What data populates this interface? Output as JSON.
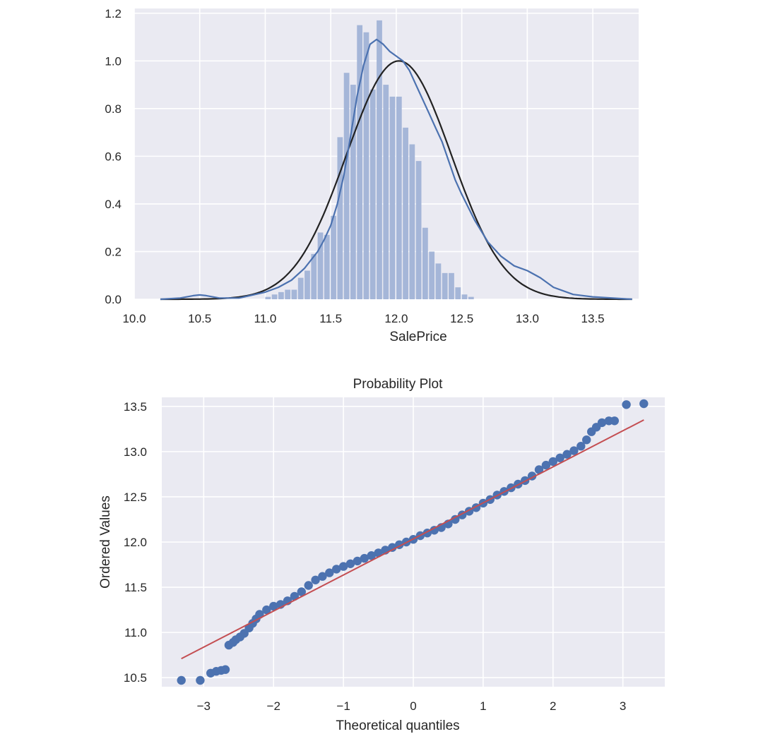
{
  "colors": {
    "axes_bg": "#eaeaf2",
    "grid": "#ffffff",
    "hist_bar": "#a5b6d8",
    "kde_line": "#4c72b0",
    "normal_fit_line": "#222222",
    "points": "#4c72b0",
    "fit_line": "#c44e52",
    "text": "#262626"
  },
  "chart_data": [
    {
      "type": "bar",
      "subtype": "histogram-with-density",
      "title": "",
      "xlabel": "SalePrice",
      "ylabel": "",
      "xlim": [
        10.0,
        13.85
      ],
      "ylim": [
        0.0,
        1.22
      ],
      "xticks": [
        10.0,
        10.5,
        11.0,
        11.5,
        12.0,
        12.5,
        13.0,
        13.5
      ],
      "xtick_labels": [
        "10.0",
        "10.5",
        "11.0",
        "11.5",
        "12.0",
        "12.5",
        "13.0",
        "13.5"
      ],
      "yticks": [
        0.0,
        0.2,
        0.4,
        0.6,
        0.8,
        1.0,
        1.2
      ],
      "ytick_labels": [
        "0.0",
        "0.2",
        "0.4",
        "0.6",
        "0.8",
        "1.0",
        "1.2"
      ],
      "grid": true,
      "bins": [
        {
          "x0": 11.0,
          "x1": 11.05,
          "value": 0.01
        },
        {
          "x0": 11.05,
          "x1": 11.1,
          "value": 0.02
        },
        {
          "x0": 11.1,
          "x1": 11.15,
          "value": 0.03
        },
        {
          "x0": 11.15,
          "x1": 11.2,
          "value": 0.04
        },
        {
          "x0": 11.2,
          "x1": 11.25,
          "value": 0.04
        },
        {
          "x0": 11.25,
          "x1": 11.3,
          "value": 0.09
        },
        {
          "x0": 11.3,
          "x1": 11.35,
          "value": 0.12
        },
        {
          "x0": 11.35,
          "x1": 11.4,
          "value": 0.19
        },
        {
          "x0": 11.4,
          "x1": 11.45,
          "value": 0.28
        },
        {
          "x0": 11.45,
          "x1": 11.5,
          "value": 0.27
        },
        {
          "x0": 11.5,
          "x1": 11.55,
          "value": 0.35
        },
        {
          "x0": 11.55,
          "x1": 11.6,
          "value": 0.68
        },
        {
          "x0": 11.6,
          "x1": 11.65,
          "value": 0.95
        },
        {
          "x0": 11.65,
          "x1": 11.7,
          "value": 0.9
        },
        {
          "x0": 11.7,
          "x1": 11.75,
          "value": 1.15
        },
        {
          "x0": 11.75,
          "x1": 11.8,
          "value": 1.12
        },
        {
          "x0": 11.8,
          "x1": 11.85,
          "value": 0.88
        },
        {
          "x0": 11.85,
          "x1": 11.9,
          "value": 1.17
        },
        {
          "x0": 11.9,
          "x1": 11.95,
          "value": 0.9
        },
        {
          "x0": 11.95,
          "x1": 12.0,
          "value": 0.85
        },
        {
          "x0": 12.0,
          "x1": 12.05,
          "value": 0.85
        },
        {
          "x0": 12.05,
          "x1": 12.1,
          "value": 0.72
        },
        {
          "x0": 12.1,
          "x1": 12.15,
          "value": 0.65
        },
        {
          "x0": 12.15,
          "x1": 12.2,
          "value": 0.58
        },
        {
          "x0": 12.2,
          "x1": 12.25,
          "value": 0.3
        },
        {
          "x0": 12.25,
          "x1": 12.3,
          "value": 0.2
        },
        {
          "x0": 12.3,
          "x1": 12.35,
          "value": 0.15
        },
        {
          "x0": 12.35,
          "x1": 12.4,
          "value": 0.11
        },
        {
          "x0": 12.4,
          "x1": 12.45,
          "value": 0.11
        },
        {
          "x0": 12.45,
          "x1": 12.5,
          "value": 0.05
        },
        {
          "x0": 12.5,
          "x1": 12.55,
          "value": 0.02
        },
        {
          "x0": 12.55,
          "x1": 12.6,
          "value": 0.01
        }
      ],
      "kde_curve": {
        "x": [
          10.2,
          10.35,
          10.45,
          10.5,
          10.55,
          10.65,
          10.8,
          11.0,
          11.1,
          11.2,
          11.3,
          11.4,
          11.45,
          11.5,
          11.55,
          11.6,
          11.65,
          11.7,
          11.75,
          11.8,
          11.85,
          11.9,
          11.95,
          12.0,
          12.05,
          12.1,
          12.15,
          12.2,
          12.25,
          12.3,
          12.35,
          12.4,
          12.45,
          12.5,
          12.6,
          12.7,
          12.8,
          12.9,
          13.0,
          13.1,
          13.2,
          13.35,
          13.5,
          13.8
        ],
        "y": [
          0.0,
          0.005,
          0.015,
          0.018,
          0.015,
          0.005,
          0.005,
          0.03,
          0.05,
          0.08,
          0.13,
          0.2,
          0.25,
          0.31,
          0.4,
          0.52,
          0.68,
          0.85,
          0.98,
          1.07,
          1.09,
          1.07,
          1.04,
          1.02,
          1.0,
          0.96,
          0.9,
          0.84,
          0.78,
          0.72,
          0.66,
          0.58,
          0.5,
          0.44,
          0.33,
          0.24,
          0.18,
          0.14,
          0.12,
          0.09,
          0.05,
          0.02,
          0.01,
          0.0
        ]
      },
      "normal_fit_curve": {
        "mean": 12.02,
        "std": 0.4
      }
    },
    {
      "type": "scatter",
      "subtype": "probability-plot",
      "title": "Probability Plot",
      "xlabel": "Theoretical quantiles",
      "ylabel": "Ordered Values",
      "xlim": [
        -3.6,
        3.6
      ],
      "ylim": [
        10.4,
        13.6
      ],
      "xticks": [
        -3,
        -2,
        -1,
        0,
        1,
        2,
        3
      ],
      "xtick_labels": [
        "−3",
        "−2",
        "−1",
        "0",
        "1",
        "2",
        "3"
      ],
      "yticks": [
        10.5,
        11.0,
        11.5,
        12.0,
        12.5,
        13.0,
        13.5
      ],
      "ytick_labels": [
        "10.5",
        "11.0",
        "11.5",
        "12.0",
        "12.5",
        "13.0",
        "13.5"
      ],
      "grid": true,
      "points": [
        [
          -3.32,
          10.47
        ],
        [
          -3.05,
          10.47
        ],
        [
          -2.9,
          10.55
        ],
        [
          -2.82,
          10.57
        ],
        [
          -2.75,
          10.58
        ],
        [
          -2.69,
          10.59
        ],
        [
          -2.64,
          10.86
        ],
        [
          -2.58,
          10.89
        ],
        [
          -2.54,
          10.92
        ],
        [
          -2.48,
          10.95
        ],
        [
          -2.42,
          10.99
        ],
        [
          -2.35,
          11.05
        ],
        [
          -2.3,
          11.1
        ],
        [
          -2.25,
          11.15
        ],
        [
          -2.2,
          11.2
        ],
        [
          -2.1,
          11.25
        ],
        [
          -2.0,
          11.29
        ],
        [
          -1.9,
          11.31
        ],
        [
          -1.8,
          11.35
        ],
        [
          -1.7,
          11.4
        ],
        [
          -1.6,
          11.45
        ],
        [
          -1.5,
          11.52
        ],
        [
          -1.4,
          11.58
        ],
        [
          -1.3,
          11.62
        ],
        [
          -1.2,
          11.66
        ],
        [
          -1.1,
          11.7
        ],
        [
          -1.0,
          11.73
        ],
        [
          -0.9,
          11.76
        ],
        [
          -0.8,
          11.79
        ],
        [
          -0.7,
          11.82
        ],
        [
          -0.6,
          11.85
        ],
        [
          -0.5,
          11.88
        ],
        [
          -0.4,
          11.91
        ],
        [
          -0.3,
          11.94
        ],
        [
          -0.2,
          11.97
        ],
        [
          -0.1,
          12.0
        ],
        [
          0.0,
          12.03
        ],
        [
          0.1,
          12.07
        ],
        [
          0.2,
          12.1
        ],
        [
          0.3,
          12.13
        ],
        [
          0.4,
          12.16
        ],
        [
          0.5,
          12.2
        ],
        [
          0.6,
          12.25
        ],
        [
          0.7,
          12.3
        ],
        [
          0.8,
          12.34
        ],
        [
          0.9,
          12.38
        ],
        [
          1.0,
          12.43
        ],
        [
          1.1,
          12.47
        ],
        [
          1.2,
          12.52
        ],
        [
          1.3,
          12.56
        ],
        [
          1.4,
          12.6
        ],
        [
          1.5,
          12.64
        ],
        [
          1.6,
          12.68
        ],
        [
          1.7,
          12.73
        ],
        [
          1.8,
          12.8
        ],
        [
          1.9,
          12.85
        ],
        [
          2.0,
          12.89
        ],
        [
          2.1,
          12.93
        ],
        [
          2.2,
          12.97
        ],
        [
          2.3,
          13.01
        ],
        [
          2.4,
          13.06
        ],
        [
          2.48,
          13.13
        ],
        [
          2.55,
          13.22
        ],
        [
          2.62,
          13.27
        ],
        [
          2.7,
          13.32
        ],
        [
          2.8,
          13.34
        ],
        [
          2.88,
          13.34
        ],
        [
          3.05,
          13.52
        ],
        [
          3.3,
          13.53
        ]
      ],
      "fit_line": {
        "x": [
          -3.32,
          3.3
        ],
        "y": [
          10.71,
          13.35
        ]
      }
    }
  ]
}
